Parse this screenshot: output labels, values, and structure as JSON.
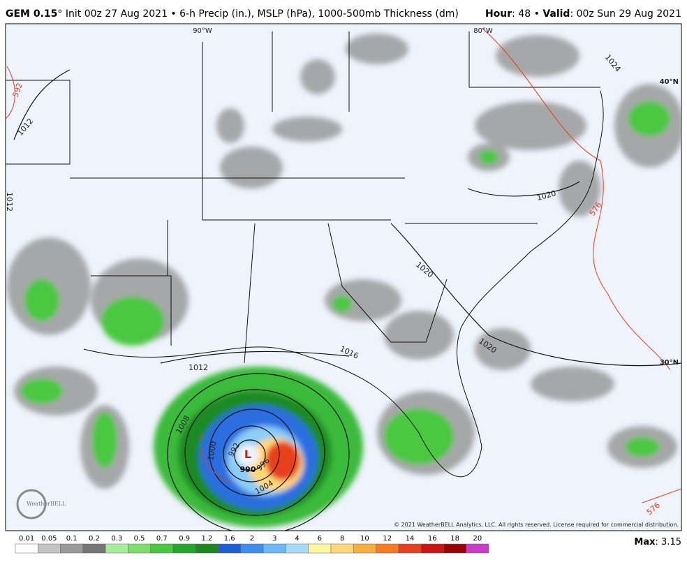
{
  "header": {
    "model": "GEM 0.15",
    "degree": "°",
    "description": " Init 00z 27 Aug 2021 • 6-h Precip (in.), MSLP (hPa), 1000-500mb Thickness (dm)",
    "hour_label": "Hour",
    "hour": ": 48 • ",
    "valid_label": "Valid",
    "valid": ": 00z Sun 29 Aug 2021"
  },
  "map": {
    "grid_labels": [
      "90°W",
      "80°W",
      "40°N",
      "30°N"
    ],
    "contour_labels": [
      "592",
      "1012",
      "1012",
      "1024",
      "1020",
      "1020",
      "1020",
      "1016",
      "1012",
      "1008",
      "1000",
      "992",
      "996",
      "1004",
      "576",
      "576"
    ],
    "low": {
      "symbol": "L",
      "pressure": "990"
    },
    "credit": "© 2021 WeatherBELL Analytics, LLC. All rights reserved. License required for commercial distribution.",
    "logo": "WeatherBELL"
  },
  "colorbar": {
    "labels": [
      0.01,
      0.05,
      0.1,
      0.2,
      0.3,
      0.5,
      0.7,
      0.9,
      1.2,
      1.6,
      2,
      3,
      4,
      6,
      8,
      10,
      12,
      14,
      16,
      18,
      20
    ],
    "colors": [
      "#ffffff",
      "#c4c4c4",
      "#9a9a9a",
      "#767676",
      "#a8ee98",
      "#7ede6c",
      "#48c840",
      "#22a82a",
      "#1a8a1e",
      "#1c5ed8",
      "#3c8ef0",
      "#6cb8f8",
      "#a6daf8",
      "#fff8a0",
      "#ffd878",
      "#ffae3c",
      "#ff7a1e",
      "#e8401e",
      "#c81414",
      "#9a0000",
      "#c83cc8"
    ],
    "max_label": "Max",
    "max": ": 3.15"
  }
}
